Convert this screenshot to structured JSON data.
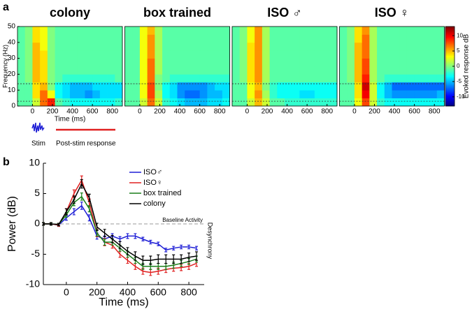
{
  "chart_data": [
    {
      "type": "heatmap",
      "panel_label": "a",
      "xlabel": "Time (ms)",
      "ylabel": "Frequency (Hz)",
      "colorbar_label": "Evoked response dB",
      "colormap": "jet",
      "xlim": [
        -150,
        900
      ],
      "ylim": [
        0,
        50
      ],
      "xticks": [
        0,
        200,
        400,
        600,
        800
      ],
      "yticks": [
        0,
        10,
        20,
        30,
        40,
        50
      ],
      "zlim": [
        -13,
        13
      ],
      "zticks": [
        10,
        5,
        0,
        -5,
        -10
      ],
      "dashed_lines": [
        3,
        14
      ],
      "x_edges": [
        -150,
        -75,
        0,
        75,
        150,
        225,
        300,
        375,
        450,
        525,
        600,
        675,
        750,
        825,
        900
      ],
      "y_edges": [
        0,
        5,
        10,
        15,
        20,
        25,
        30,
        35,
        40,
        45,
        50
      ],
      "annotations": [
        "Stim",
        "Post-stim response"
      ],
      "panels": [
        {
          "title": "colony",
          "z": [
            [
              -1,
              -1,
              2,
              7,
              9,
              -1,
              -2,
              -3,
              -3,
              -3,
              -3,
              -3,
              -3,
              -2
            ],
            [
              -1,
              -1,
              4,
              7,
              3,
              -3,
              -4,
              -5,
              -5,
              -6,
              -5,
              -4,
              -4,
              -4
            ],
            [
              -1,
              -1,
              4,
              5,
              0,
              -3,
              -4,
              -5,
              -5,
              -5,
              -4,
              -4,
              -4,
              -4
            ],
            [
              -1,
              0,
              5,
              4,
              0,
              -1,
              -2,
              -2,
              -2,
              -2,
              -2,
              -2,
              -2,
              -1
            ],
            [
              -1,
              0,
              5,
              4,
              0,
              -1,
              -1,
              -1,
              -1,
              -1,
              -1,
              -1,
              -1,
              -1
            ],
            [
              -1,
              0,
              5,
              4,
              0,
              -1,
              -1,
              -1,
              -1,
              -1,
              -1,
              -1,
              -1,
              -1
            ],
            [
              -1,
              0,
              5,
              4,
              0,
              -1,
              -1,
              -1,
              -1,
              -1,
              -1,
              -1,
              -1,
              -1
            ],
            [
              -1,
              0,
              5,
              3,
              0,
              -1,
              -1,
              -1,
              -1,
              -1,
              -1,
              -1,
              -1,
              -1
            ],
            [
              -1,
              0,
              4,
              3,
              0,
              -1,
              -1,
              -1,
              -1,
              -1,
              -1,
              -1,
              -1,
              -1
            ],
            [
              -1,
              0,
              4,
              3,
              0,
              -1,
              -1,
              -1,
              -1,
              -1,
              -1,
              -1,
              -1,
              -1
            ]
          ]
        },
        {
          "title": "box trained",
          "z": [
            [
              -1,
              -1,
              2,
              7,
              2,
              -2,
              -3,
              -4,
              -5,
              -5,
              -5,
              -4,
              -4,
              -3
            ],
            [
              -1,
              -1,
              3,
              8,
              1,
              -3,
              -4,
              -6,
              -7,
              -7,
              -6,
              -5,
              -5,
              -4
            ],
            [
              -1,
              -1,
              3,
              8,
              0,
              -3,
              -4,
              -6,
              -6,
              -6,
              -6,
              -5,
              -4,
              -4
            ],
            [
              -1,
              -1,
              3,
              7,
              0,
              -1,
              -2,
              -2,
              -2,
              -2,
              -2,
              -2,
              -2,
              -2
            ],
            [
              -1,
              -1,
              3,
              7,
              1,
              -1,
              -1,
              -1,
              -1,
              -1,
              -1,
              -1,
              -1,
              -1
            ],
            [
              -1,
              -1,
              3,
              7,
              1,
              -1,
              -1,
              -1,
              -1,
              -1,
              -1,
              -1,
              -1,
              -1
            ],
            [
              -1,
              -1,
              3,
              6,
              1,
              -1,
              -1,
              -1,
              -1,
              -1,
              -1,
              -1,
              -1,
              -1
            ],
            [
              -1,
              -1,
              3,
              6,
              1,
              -1,
              -1,
              -1,
              -1,
              -1,
              -1,
              -1,
              -1,
              -1
            ],
            [
              -1,
              -1,
              3,
              6,
              1,
              -1,
              -1,
              -1,
              -1,
              -1,
              -1,
              -1,
              -1,
              -1
            ],
            [
              -1,
              -1,
              3,
              5,
              1,
              -1,
              -1,
              -1,
              -1,
              -1,
              -1,
              -1,
              -1,
              -1
            ]
          ]
        },
        {
          "title": "ISO ♂",
          "z": [
            [
              -1,
              -1,
              2,
              5,
              2,
              -1,
              -1,
              -2,
              -2,
              -2,
              -2,
              -2,
              -2,
              -2
            ],
            [
              -1,
              -1,
              3,
              6,
              1,
              -2,
              -3,
              -3,
              -3,
              -4,
              -4,
              -3,
              -3,
              -3
            ],
            [
              -1,
              -1,
              3,
              5,
              0,
              -2,
              -3,
              -3,
              -3,
              -3,
              -3,
              -3,
              -3,
              -3
            ],
            [
              -1,
              0,
              4,
              6,
              1,
              -1,
              -1,
              -1,
              -1,
              -1,
              -1,
              -1,
              -1,
              -1
            ],
            [
              -1,
              0,
              4,
              6,
              1,
              -1,
              -1,
              -1,
              -1,
              -1,
              -1,
              -1,
              -1,
              -1
            ],
            [
              -1,
              0,
              4,
              6,
              1,
              -1,
              -1,
              -1,
              -1,
              -1,
              -1,
              -1,
              -1,
              -1
            ],
            [
              -1,
              0,
              4,
              6,
              1,
              -1,
              -1,
              -1,
              -1,
              -1,
              -1,
              -1,
              -1,
              -1
            ],
            [
              -1,
              0,
              4,
              6,
              1,
              -1,
              -1,
              -1,
              -1,
              -1,
              -1,
              -1,
              -1,
              -1
            ],
            [
              -1,
              0,
              3,
              6,
              1,
              -1,
              -1,
              -1,
              -1,
              -1,
              -1,
              -1,
              -1,
              -1
            ],
            [
              -1,
              0,
              3,
              6,
              1,
              -1,
              -1,
              -1,
              -1,
              -1,
              -1,
              -1,
              -1,
              -1
            ]
          ]
        },
        {
          "title": "ISO ♀",
          "z": [
            [
              -1,
              -1,
              3,
              8,
              2,
              -2,
              -3,
              -3,
              -3,
              -3,
              -3,
              -3,
              -3,
              -3
            ],
            [
              -1,
              -1,
              4,
              10,
              2,
              -3,
              -5,
              -6,
              -6,
              -6,
              -6,
              -6,
              -6,
              -5
            ],
            [
              -1,
              -1,
              4,
              11,
              2,
              -3,
              -5,
              -7,
              -7,
              -7,
              -7,
              -7,
              -7,
              -7
            ],
            [
              -1,
              0,
              5,
              9,
              1,
              -1,
              -2,
              -2,
              -2,
              -2,
              -2,
              -2,
              -2,
              -2
            ],
            [
              -1,
              0,
              5,
              8,
              1,
              -1,
              -1,
              -1,
              -1,
              -1,
              -1,
              -1,
              -1,
              -1
            ],
            [
              -1,
              0,
              5,
              8,
              1,
              -1,
              -1,
              -1,
              -1,
              -1,
              -1,
              -1,
              -1,
              -1
            ],
            [
              -1,
              0,
              5,
              7,
              1,
              -1,
              -1,
              -1,
              -1,
              -1,
              -1,
              -1,
              -1,
              -1
            ],
            [
              -1,
              0,
              5,
              7,
              1,
              -1,
              -1,
              -1,
              -1,
              -1,
              -1,
              -1,
              -1,
              -1
            ],
            [
              -1,
              0,
              4,
              7,
              1,
              -1,
              -1,
              -1,
              -1,
              -1,
              -1,
              -1,
              -1,
              -1
            ],
            [
              -1,
              0,
              4,
              6,
              1,
              -1,
              -1,
              -1,
              -1,
              -1,
              -1,
              -1,
              -1,
              -1
            ]
          ]
        }
      ]
    },
    {
      "type": "line",
      "panel_label": "b",
      "xlabel": "Time (ms)",
      "ylabel": "Power (dB)",
      "xlim": [
        -150,
        900
      ],
      "ylim": [
        -10,
        10
      ],
      "xticks": [
        0,
        200,
        400,
        600,
        800
      ],
      "yticks": [
        -10,
        -5,
        0,
        5,
        10
      ],
      "hline": 0,
      "annotations": [
        "Baseline Activity",
        "Desynchrony"
      ],
      "x": [
        -150,
        -100,
        -50,
        0,
        50,
        100,
        150,
        200,
        250,
        300,
        350,
        400,
        450,
        500,
        550,
        600,
        650,
        700,
        750,
        800,
        850
      ],
      "series": [
        {
          "name": "ISO♂",
          "color": "#1f1fd6",
          "values": [
            0,
            0,
            -0.2,
            1,
            2,
            3,
            1,
            -2,
            -2.5,
            -2,
            -2.5,
            -2,
            -2,
            -2.5,
            -3,
            -3.3,
            -4.3,
            -4,
            -3.8,
            -3.8,
            -4
          ],
          "errors": [
            0.2,
            0.2,
            0.2,
            0.4,
            0.5,
            0.6,
            0.5,
            0.5,
            0.5,
            0.4,
            0.4,
            0.4,
            0.4,
            0.3,
            0.3,
            0.3,
            0.3,
            0.3,
            0.3,
            0.3,
            0.3
          ]
        },
        {
          "name": "ISO♀",
          "color": "#e02020",
          "values": [
            0,
            0,
            -0.2,
            2,
            5,
            7.2,
            3.5,
            -1.5,
            -3,
            -3.5,
            -5,
            -6,
            -7,
            -7.8,
            -8,
            -7.8,
            -7.5,
            -7.3,
            -7.2,
            -7,
            -6.5
          ],
          "errors": [
            0.2,
            0.2,
            0.2,
            0.5,
            0.6,
            0.7,
            0.6,
            0.6,
            0.6,
            0.5,
            0.5,
            0.5,
            0.5,
            0.5,
            0.5,
            0.5,
            0.5,
            0.5,
            0.5,
            0.5,
            0.5
          ]
        },
        {
          "name": "box trained",
          "color": "#1a7f1a",
          "values": [
            0,
            0,
            -0.1,
            1.5,
            3.5,
            4.5,
            2.5,
            -1.5,
            -3,
            -3,
            -4,
            -5,
            -6,
            -7,
            -7,
            -7,
            -7,
            -6.8,
            -6.5,
            -6.2,
            -5.8
          ],
          "errors": [
            0.2,
            0.2,
            0.2,
            0.4,
            0.5,
            0.6,
            0.5,
            0.5,
            0.5,
            0.5,
            0.5,
            0.5,
            0.5,
            0.5,
            0.5,
            0.5,
            0.5,
            0.5,
            0.5,
            0.5,
            0.5
          ]
        },
        {
          "name": "colony",
          "color": "#000000",
          "values": [
            0,
            0,
            -0.1,
            2,
            4,
            6.6,
            4.3,
            -0.5,
            -1.5,
            -2.5,
            -3.5,
            -4.5,
            -5.3,
            -6,
            -6,
            -5.8,
            -5.8,
            -5.8,
            -5.8,
            -5.5,
            -5.3
          ],
          "errors": [
            0.2,
            0.2,
            0.2,
            0.5,
            0.6,
            0.7,
            0.6,
            0.6,
            0.6,
            0.6,
            0.6,
            0.6,
            0.7,
            0.7,
            0.7,
            0.7,
            0.7,
            0.7,
            0.7,
            0.7,
            0.7
          ]
        }
      ]
    }
  ]
}
